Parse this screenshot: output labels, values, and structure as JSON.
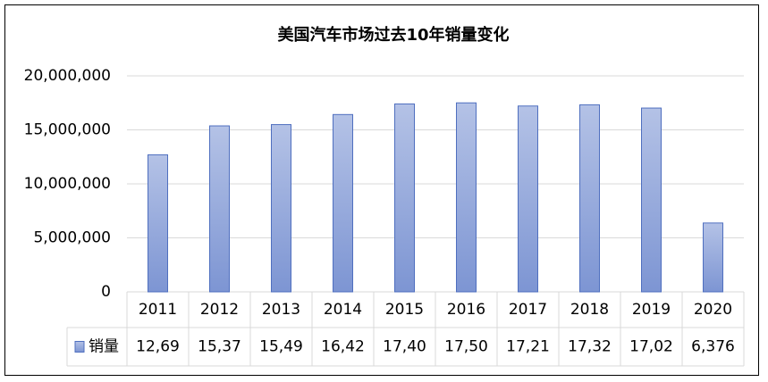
{
  "chart_data": {
    "type": "bar",
    "title": "美国汽车市场过去10年销量变化",
    "categories": [
      "2011",
      "2012",
      "2013",
      "2014",
      "2015",
      "2016",
      "2017",
      "2018",
      "2019",
      "2020"
    ],
    "series": [
      {
        "name": "销量",
        "color": "#8ea3d8",
        "values": [
          12690000,
          15370000,
          15490000,
          16420000,
          17400000,
          17500000,
          17210000,
          17320000,
          17020000,
          6376000
        ],
        "value_labels": [
          "12,69",
          "15,37",
          "15,49",
          "16,42",
          "17,40",
          "17,50",
          "17,21",
          "17,32",
          "17,02",
          "6,376"
        ]
      }
    ],
    "ylim": [
      0,
      20000000
    ],
    "yticks": [
      0,
      {
        "value": 5000000,
        "label": "5,000,000"
      },
      {
        "value": 10000000,
        "label": "10,000,000"
      },
      {
        "value": 15000000,
        "label": "15,000,000"
      },
      {
        "value": 20000000,
        "label": "20,000,000"
      }
    ],
    "grid": true
  }
}
